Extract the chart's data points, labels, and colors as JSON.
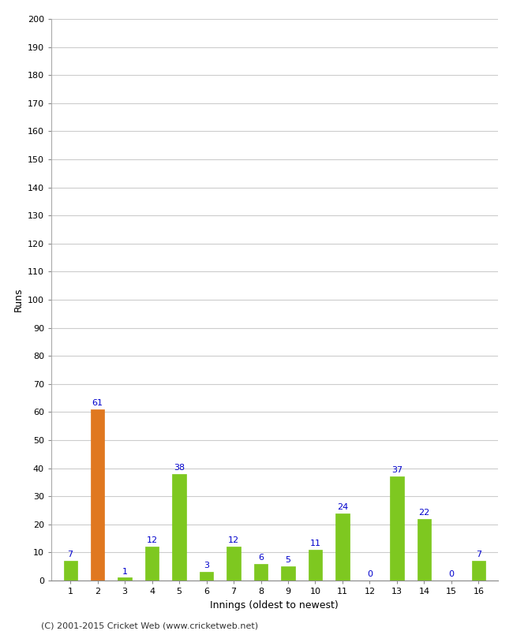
{
  "innings": [
    1,
    2,
    3,
    4,
    5,
    6,
    7,
    8,
    9,
    10,
    11,
    12,
    13,
    14,
    15,
    16
  ],
  "runs": [
    7,
    61,
    1,
    12,
    38,
    3,
    12,
    6,
    5,
    11,
    24,
    0,
    37,
    22,
    0,
    7
  ],
  "bar_colors": [
    "#7ec820",
    "#e07820",
    "#7ec820",
    "#7ec820",
    "#7ec820",
    "#7ec820",
    "#7ec820",
    "#7ec820",
    "#7ec820",
    "#7ec820",
    "#7ec820",
    "#7ec820",
    "#7ec820",
    "#7ec820",
    "#7ec820",
    "#7ec820"
  ],
  "xlabel": "Innings (oldest to newest)",
  "ylabel": "Runs",
  "ylim": [
    0,
    200
  ],
  "yticks": [
    0,
    10,
    20,
    30,
    40,
    50,
    60,
    70,
    80,
    90,
    100,
    110,
    120,
    130,
    140,
    150,
    160,
    170,
    180,
    190,
    200
  ],
  "label_color": "#0000cc",
  "grid_color": "#cccccc",
  "bg_color": "#ffffff",
  "footer": "(C) 2001-2015 Cricket Web (www.cricketweb.net)",
  "bar_width": 0.5
}
